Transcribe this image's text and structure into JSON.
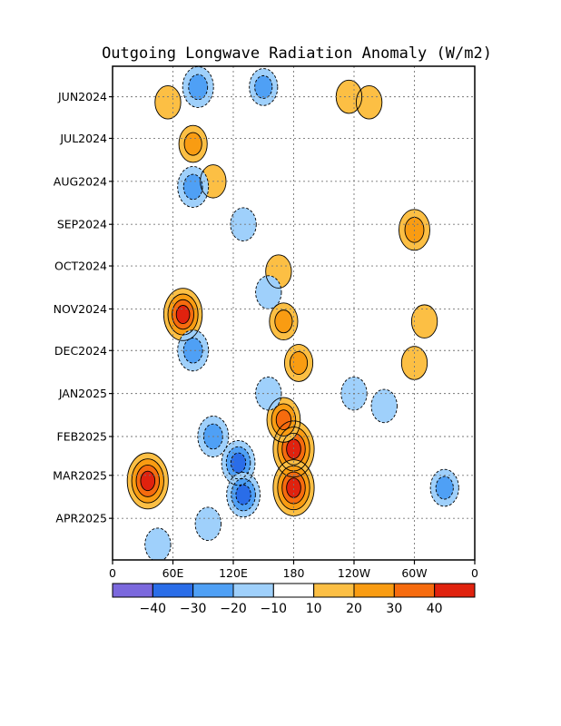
{
  "chart_data": {
    "type": "heatmap",
    "title": "Outgoing Longwave Radiation Anomaly (W/m2)",
    "xlabel": "",
    "ylabel": "",
    "x_ticks": [
      "0",
      "60E",
      "120E",
      "180",
      "120W",
      "60W",
      "0"
    ],
    "x_range": [
      0,
      360
    ],
    "y_ticks": [
      "JUN2024",
      "JUL2024",
      "AUG2024",
      "SEP2024",
      "OCT2024",
      "NOV2024",
      "DEC2024",
      "JAN2025",
      "FEB2025",
      "MAR2025",
      "APR2025"
    ],
    "y_range": [
      "2024-05-10",
      "2025-05-01"
    ],
    "grid": true,
    "colorbar": {
      "bin_edges": [
        -50,
        -40,
        -30,
        -20,
        -10,
        10,
        20,
        30,
        40,
        50
      ],
      "labels": [
        "−40",
        "−30",
        "−20",
        "−10",
        "10",
        "20",
        "30",
        "40"
      ],
      "colors": [
        "#7b68dd",
        "#2a6de8",
        "#4fa0f5",
        "#9fd0fb",
        "#ffffff",
        "#fcbf44",
        "#f99c12",
        "#f66b0e",
        "#e0220e"
      ]
    },
    "features": [
      {
        "lon": 180,
        "date": "2025-02-10",
        "value": 45
      },
      {
        "lon": 180,
        "date": "2025-03-10",
        "value": 45
      },
      {
        "lon": 170,
        "date": "2025-01-20",
        "value": 30
      },
      {
        "lon": 185,
        "date": "2024-12-10",
        "value": 20
      },
      {
        "lon": 170,
        "date": "2024-11-10",
        "value": 20
      },
      {
        "lon": 165,
        "date": "2024-10-05",
        "value": 15
      },
      {
        "lon": 70,
        "date": "2024-11-05",
        "value": 40
      },
      {
        "lon": 35,
        "date": "2025-03-05",
        "value": 45
      },
      {
        "lon": 55,
        "date": "2024-06-05",
        "value": 15
      },
      {
        "lon": 80,
        "date": "2024-07-05",
        "value": 20
      },
      {
        "lon": 100,
        "date": "2024-08-01",
        "value": 15
      },
      {
        "lon": 235,
        "date": "2024-06-01",
        "value": 15
      },
      {
        "lon": 255,
        "date": "2024-06-05",
        "value": 15
      },
      {
        "lon": 300,
        "date": "2024-09-05",
        "value": 25
      },
      {
        "lon": 310,
        "date": "2024-11-10",
        "value": 15
      },
      {
        "lon": 300,
        "date": "2024-12-10",
        "value": 15
      },
      {
        "lon": 85,
        "date": "2024-05-25",
        "value": -25
      },
      {
        "lon": 150,
        "date": "2024-05-25",
        "value": -20
      },
      {
        "lon": 80,
        "date": "2024-08-05",
        "value": -25
      },
      {
        "lon": 130,
        "date": "2024-09-01",
        "value": -15
      },
      {
        "lon": 80,
        "date": "2024-12-01",
        "value": -25
      },
      {
        "lon": 100,
        "date": "2025-02-01",
        "value": -25
      },
      {
        "lon": 125,
        "date": "2025-02-20",
        "value": -30
      },
      {
        "lon": 130,
        "date": "2025-03-15",
        "value": -30
      },
      {
        "lon": 155,
        "date": "2024-10-20",
        "value": -15
      },
      {
        "lon": 155,
        "date": "2025-01-01",
        "value": -15
      },
      {
        "lon": 240,
        "date": "2025-01-01",
        "value": -15
      },
      {
        "lon": 270,
        "date": "2025-01-10",
        "value": -15
      },
      {
        "lon": 330,
        "date": "2025-03-10",
        "value": -20
      },
      {
        "lon": 45,
        "date": "2025-04-20",
        "value": -15
      },
      {
        "lon": 95,
        "date": "2025-04-05",
        "value": -15
      }
    ]
  }
}
